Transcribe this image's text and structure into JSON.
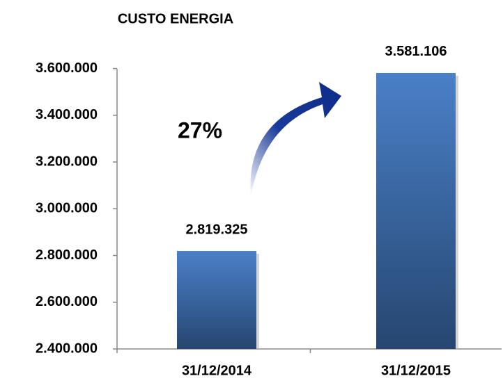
{
  "chart_data": {
    "type": "bar",
    "title": "CUSTO ENERGIA",
    "categories": [
      "31/12/2014",
      "31/12/2015"
    ],
    "values": [
      2819325,
      3581106
    ],
    "value_labels": [
      "2.819.325",
      "3.581.106"
    ],
    "color": "#4a80c8",
    "annotation": "27%",
    "ylim": [
      2400000,
      3700000
    ],
    "yticks": [
      {
        "value": 2400000,
        "label": "2.400.000"
      },
      {
        "value": 2600000,
        "label": "2.600.000"
      },
      {
        "value": 2800000,
        "label": "2.800.000"
      },
      {
        "value": 3000000,
        "label": "3.000.000"
      },
      {
        "value": 3200000,
        "label": "3.200.000"
      },
      {
        "value": 3400000,
        "label": "3.400.000"
      },
      {
        "value": 3600000,
        "label": "3.600.000"
      }
    ],
    "grid": false
  }
}
